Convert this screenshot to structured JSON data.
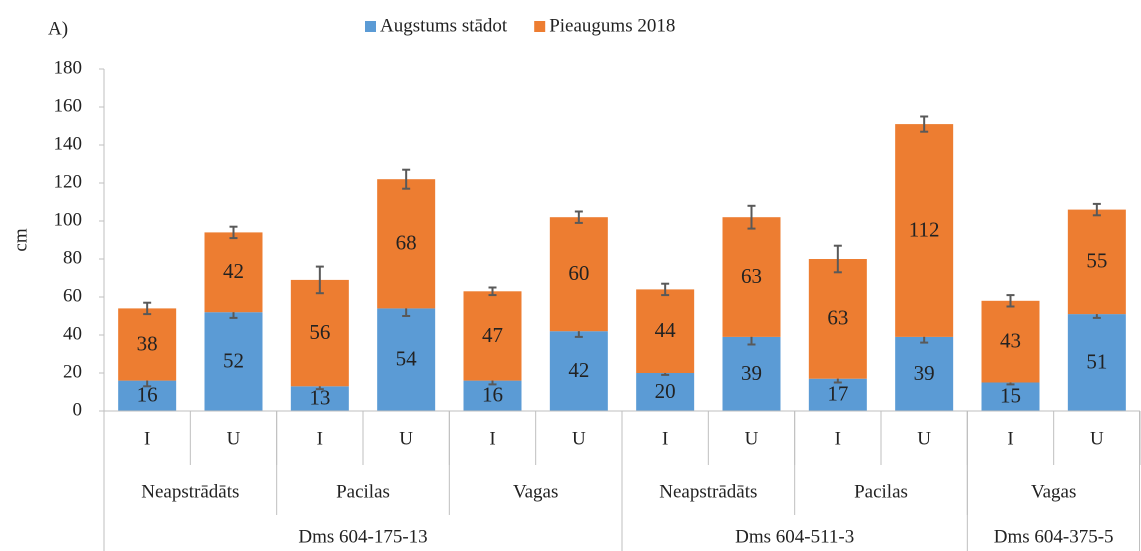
{
  "chart_data": {
    "type": "stacked_bar",
    "panel_label": "A)",
    "y_label": "cm",
    "categories": [
      "I",
      "U",
      "I",
      "U",
      "I",
      "U",
      "I",
      "U",
      "I",
      "U",
      "I",
      "U"
    ],
    "subgroups": [
      {
        "name": "Neapstrādāts",
        "size": 2
      },
      {
        "name": "Pacilas",
        "size": 2
      },
      {
        "name": "Vagas",
        "size": 2
      },
      {
        "name": "Neapstrādāts",
        "size": 2
      },
      {
        "name": "Pacilas",
        "size": 2
      },
      {
        "name": "Vagas",
        "size": 2
      }
    ],
    "groups": [
      {
        "name": "Dms 604-175-13",
        "size": 6
      },
      {
        "name": "Dms 604-511-3",
        "size": 4
      },
      {
        "name": "Dms 604-375-5",
        "size": 2
      }
    ],
    "series": [
      {
        "name": "Augstums stādot",
        "color": "#5b9bd5",
        "values": [
          16,
          52,
          13,
          54,
          16,
          42,
          20,
          39,
          17,
          39,
          15,
          51
        ],
        "errors": [
          3,
          3,
          1.5,
          4,
          2,
          3,
          1,
          4,
          2,
          3,
          1,
          2
        ]
      },
      {
        "name": "Pieaugums 2018",
        "color": "#ed7d31",
        "values": [
          38,
          42,
          56,
          68,
          47,
          60,
          44,
          63,
          63,
          112,
          43,
          55
        ],
        "errors": [
          3,
          3,
          7,
          5,
          2,
          3,
          3,
          6,
          7,
          4,
          3,
          3
        ]
      }
    ],
    "ylim": [
      0,
      180
    ],
    "yticks": [
      0,
      20,
      40,
      60,
      80,
      100,
      120,
      140,
      160,
      180
    ],
    "grid": false,
    "legend": "top"
  }
}
